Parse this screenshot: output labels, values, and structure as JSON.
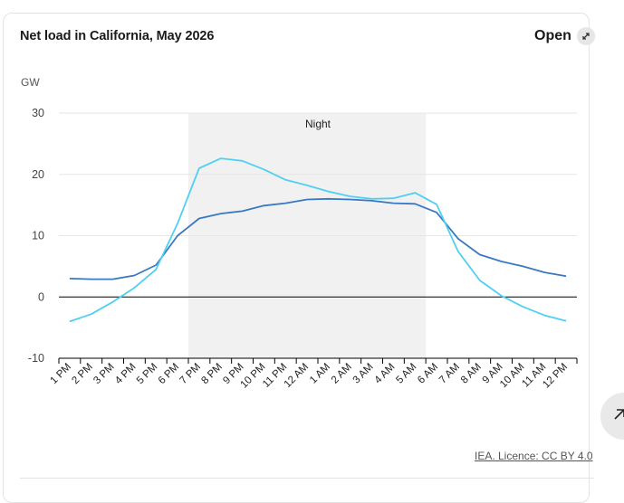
{
  "chart_title": "Net load in California, May 2026",
  "open_label": "Open",
  "unit_label": "GW",
  "source_text": "IEA. Licence: CC BY 4.0",
  "icons": {
    "open": "expand-arrows-icon",
    "float_button": "arrow-up-right-icon"
  },
  "colors": {
    "series_dark": "#3a78c2",
    "series_light": "#4fd0f2",
    "night_band": "#f1f1f1",
    "gridline": "#e6e6e6",
    "zero_line": "#000000"
  },
  "chart_data": {
    "type": "line",
    "title": "Net load in California, May 2026",
    "ylabel": "GW",
    "xlabel": "",
    "ylim": [
      -10,
      30
    ],
    "yticks": [
      -10,
      0,
      10,
      20,
      30
    ],
    "grid": true,
    "legend": "none",
    "categories": [
      "1 PM",
      "2 PM",
      "3 PM",
      "4 PM",
      "5 PM",
      "6 PM",
      "7 PM",
      "8 PM",
      "9 PM",
      "10 PM",
      "11 PM",
      "12 AM",
      "1 AM",
      "2 AM",
      "3 AM",
      "4 AM",
      "5 AM",
      "6 AM",
      "7 AM",
      "8 AM",
      "9 AM",
      "10 AM",
      "11 AM",
      "12 PM"
    ],
    "annotation": {
      "label": "Night",
      "from": "7 PM",
      "to": "6 AM"
    },
    "series": [
      {
        "color": "#3a78c2",
        "values": [
          3.0,
          2.9,
          2.9,
          3.5,
          5.2,
          10.0,
          12.8,
          13.6,
          14.0,
          14.9,
          15.3,
          15.9,
          16.0,
          15.9,
          15.7,
          15.3,
          15.2,
          13.8,
          9.5,
          6.9,
          5.8,
          5.0,
          4.0,
          3.4
        ]
      },
      {
        "color": "#4fd0f2",
        "values": [
          -4.0,
          -2.8,
          -0.8,
          1.5,
          4.5,
          12.0,
          21.0,
          22.6,
          22.2,
          20.8,
          19.1,
          18.2,
          17.2,
          16.4,
          16.0,
          16.1,
          17.0,
          15.1,
          7.4,
          2.7,
          0.2,
          -1.6,
          -3.0,
          -3.9
        ]
      }
    ]
  }
}
